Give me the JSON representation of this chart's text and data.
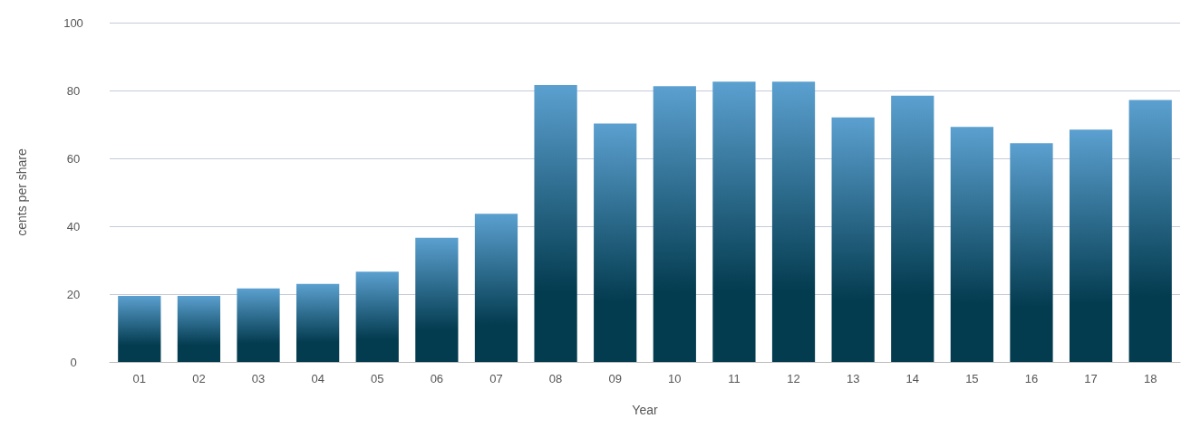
{
  "chart_data": {
    "type": "bar",
    "xlabel": "Year",
    "ylabel": "cents per share",
    "categories": [
      "01",
      "02",
      "03",
      "04",
      "05",
      "06",
      "07",
      "08",
      "09",
      "10",
      "11",
      "12",
      "13",
      "14",
      "15",
      "16",
      "17",
      "18"
    ],
    "values": [
      19.5,
      19.5,
      21.7,
      23,
      26.6,
      36.6,
      43.7,
      81.6,
      70.3,
      81.3,
      82.6,
      82.6,
      72.1,
      78.5,
      69.3,
      64.5,
      68.5,
      77.2
    ],
    "color": "#033b4f",
    "ylim": [
      0,
      100
    ],
    "yticks": [
      0,
      20,
      40,
      60,
      80,
      100
    ],
    "grid": "y"
  }
}
